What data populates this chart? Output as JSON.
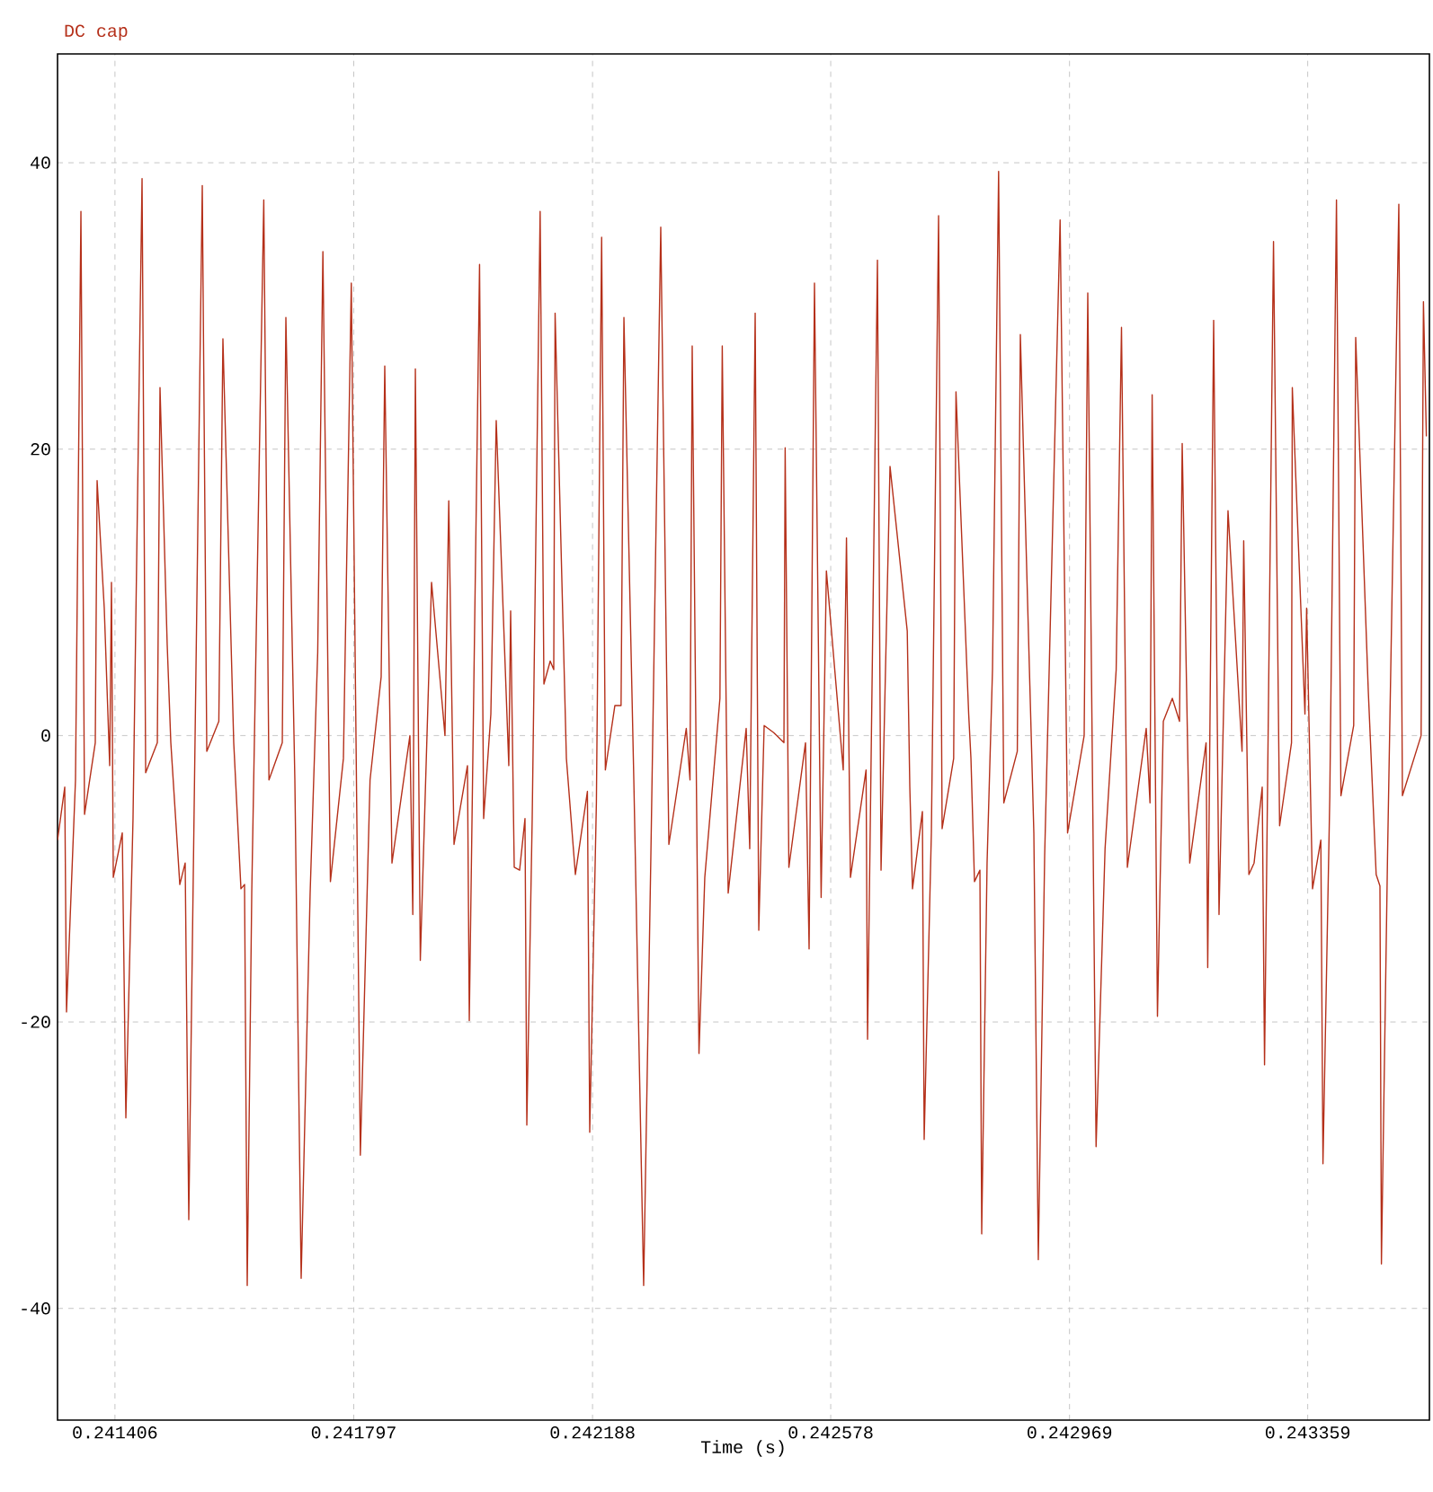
{
  "chart_data": {
    "type": "line",
    "title": "DC cap",
    "xlabel": "Time (s)",
    "x": [
      0.241312,
      0.2413238,
      0.2413267,
      0.2413414,
      0.2413503,
      0.2413562,
      0.2413738,
      0.2413768,
      0.2413885,
      0.2413974,
      0.2414003,
      0.2414033,
      0.241418,
      0.2414239,
      0.2414356,
      0.2414504,
      0.2414563,
      0.2414754,
      0.2414798,
      0.2414916,
      0.2414975,
      0.2415122,
      0.241521,
      0.2415269,
      0.241549,
      0.2415564,
      0.2415761,
      0.2415828,
      0.2416005,
      0.2416123,
      0.2416182,
      0.2416226,
      0.24163,
      0.2416497,
      0.2416582,
      0.24168,
      0.2416859,
      0.2417006,
      0.2417109,
      0.2417256,
      0.241738,
      0.2417465,
      0.2417588,
      0.2417801,
      0.241793,
      0.2418078,
      0.2418237,
      0.2418419,
      0.2418478,
      0.2418596,
      0.241889,
      0.2418937,
      0.2418979,
      0.241906,
      0.2419244,
      0.2419464,
      0.2419526,
      0.2419612,
      0.2419832,
      0.2419862,
      0.242003,
      0.2420097,
      0.2420215,
      0.2420303,
      0.2420509,
      0.2420539,
      0.2420598,
      0.2420686,
      0.2420774,
      0.2420804,
      0.2420892,
      0.2421022,
      0.2421084,
      0.2421187,
      0.2421245,
      0.2421267,
      0.2421452,
      0.2421599,
      0.2421796,
      0.2421834,
      0.2421943,
      0.2422029,
      0.242209,
      0.2422246,
      0.2422347,
      0.2422394,
      0.2422556,
      0.2422717,
      0.2422835,
      0.2422997,
      0.242313,
      0.2423415,
      0.2423476,
      0.2423512,
      0.2423623,
      0.2423718,
      0.2423966,
      0.2424004,
      0.2424101,
      0.2424396,
      0.2424454,
      0.2424543,
      0.2424602,
      0.242469,
      0.2424849,
      0.2425014,
      0.2425034,
      0.2425095,
      0.2425367,
      0.2425426,
      0.2425514,
      0.2425623,
      0.2425709,
      0.2425985,
      0.2426038,
      0.2426103,
      0.2426359,
      0.2426383,
      0.2426545,
      0.2426604,
      0.2426751,
      0.2427033,
      0.2427075,
      0.2427119,
      0.2427281,
      0.242731,
      0.2427428,
      0.2427546,
      0.2427604,
      0.2427793,
      0.2427831,
      0.2428039,
      0.2428076,
      0.2428134,
      0.2428223,
      0.2428252,
      0.242834,
      0.2428429,
      0.2428529,
      0.2428614,
      0.2428835,
      0.2428885,
      0.2429106,
      0.2429179,
      0.2429283,
      0.2429536,
      0.2429658,
      0.242993,
      0.2429989,
      0.2430125,
      0.2430272,
      0.2430454,
      0.2430541,
      0.2430637,
      0.2430946,
      0.2431008,
      0.2431043,
      0.243113,
      0.2431226,
      0.2431373,
      0.2431491,
      0.2431535,
      0.2431658,
      0.2431926,
      0.2431953,
      0.243205,
      0.2432138,
      0.2432285,
      0.2432515,
      0.2432542,
      0.2432627,
      0.2432712,
      0.2432845,
      0.2432883,
      0.243303,
      0.243313,
      0.2433325,
      0.2433338,
      0.2433545,
      0.2433572,
      0.2433669,
      0.2433805,
      0.243384,
      0.2433952,
      0.2434061,
      0.2434134,
      0.2434343,
      0.2434376,
      0.2434582,
      0.2434711,
      0.2434773,
      0.2434797,
      0.2434897,
      0.2435082,
      0.2435141,
      0.2435447,
      0.2435485,
      0.2435533
    ],
    "series": [
      {
        "color": "#b5301a",
        "values": [
          -7.3,
          -3.6,
          -19.3,
          -3.1,
          36.6,
          -5.5,
          -0.5,
          17.8,
          8.9,
          -2.1,
          10.7,
          -9.9,
          -6.8,
          -26.7,
          -5.8,
          38.9,
          -2.6,
          -0.5,
          24.3,
          6.3,
          -0.5,
          -10.4,
          -8.9,
          -33.8,
          38.4,
          -1.1,
          1.0,
          27.7,
          -0.5,
          -10.7,
          -10.4,
          -38.4,
          -11,
          37.4,
          -3.1,
          -0.5,
          29.2,
          -3.1,
          -37.9,
          -11,
          5.8,
          33.8,
          -10.2,
          -1.6,
          31.6,
          -29.3,
          -3.1,
          4.1,
          25.8,
          -8.9,
          0,
          -12.5,
          25.6,
          -15.7,
          10.7,
          0,
          16.4,
          -7.6,
          -2.1,
          -19.9,
          32.9,
          -5.8,
          1.5,
          22,
          -2.1,
          8.7,
          -9.2,
          -9.4,
          -5.8,
          -27.2,
          -5.8,
          36.6,
          3.6,
          5.2,
          4.6,
          29.5,
          -1.6,
          -9.7,
          -3.9,
          -27.7,
          -4.7,
          34.8,
          -2.4,
          2.1,
          2.1,
          29.2,
          -3.1,
          -38.4,
          -8.4,
          35.5,
          -7.6,
          0.5,
          -3.1,
          27.2,
          -22.2,
          -9.9,
          2.6,
          27.2,
          -11,
          0.5,
          -7.9,
          29.5,
          -13.6,
          0.7,
          0.2,
          -0.5,
          20.1,
          -9.2,
          -0.5,
          -14.9,
          31.6,
          -11.3,
          11.5,
          -2.4,
          13.8,
          -9.9,
          -2.4,
          -21.2,
          33.2,
          -9.4,
          18.8,
          7.3,
          -3.6,
          -10.7,
          -5.3,
          -28.2,
          -6.8,
          36.3,
          -6.5,
          -1.6,
          24,
          1.5,
          -1.6,
          -10.2,
          -9.4,
          -34.8,
          -8.9,
          4.6,
          39.4,
          -4.7,
          -1.1,
          28,
          -6.8,
          -36.6,
          -8.4,
          36,
          -6.8,
          0,
          30.9,
          -28.7,
          -7.9,
          4.6,
          28.5,
          -9.2,
          0.5,
          -4.7,
          23.8,
          -19.6,
          1.0,
          2.6,
          1.0,
          20.4,
          -8.9,
          -0.5,
          -16.2,
          29,
          -12.5,
          15.7,
          -1.1,
          13.6,
          -9.7,
          -8.9,
          -3.6,
          -23,
          34.5,
          -6.3,
          -0.5,
          24.3,
          1.5,
          8.9,
          -10.7,
          -7.3,
          -29.9,
          -4.2,
          37.4,
          -4.2,
          0.7,
          27.8,
          3.1,
          -9.7,
          -10.5,
          -36.9,
          -8.4,
          37.1,
          -4.2,
          0,
          30.3,
          20.9
        ]
      }
    ],
    "xlim": [
      0.241312,
      0.2435583
    ],
    "ylim": [
      -47.8,
      47.6
    ],
    "xticks": [
      0.241406,
      0.241797,
      0.242188,
      0.242578,
      0.242969,
      0.243359
    ],
    "yticks": [
      -40,
      -20,
      0,
      20,
      40
    ],
    "grid": true
  }
}
